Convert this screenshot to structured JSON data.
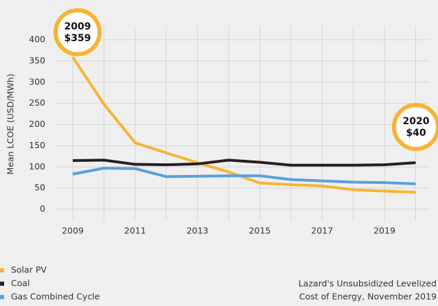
{
  "chart_data": {
    "type": "line",
    "y_label": "Mean LCOE (USD/MWh)",
    "categories": [
      "2009",
      null,
      "2011",
      null,
      "2013",
      null,
      "2015",
      null,
      "2017",
      null,
      "2019",
      null
    ],
    "series": [
      {
        "name": "Solar PV",
        "color": "#f8b334",
        "values": [
          359,
          248,
          157,
          133,
          110,
          88,
          62,
          58,
          55,
          46,
          43,
          40
        ]
      },
      {
        "name": "Coal",
        "color": "#231f20",
        "values": [
          115,
          116,
          106,
          105,
          107,
          116,
          111,
          104,
          104,
          104,
          105,
          110
        ]
      },
      {
        "name": "Gas Combined Cycle",
        "color": "#5a9fdc",
        "values": [
          83,
          97,
          96,
          77,
          78,
          79,
          79,
          70,
          67,
          64,
          63,
          60
        ]
      }
    ],
    "ylim": [
      0,
      400
    ],
    "yticks": [
      0,
      50,
      100,
      150,
      200,
      250,
      300,
      350,
      400
    ],
    "grid": true,
    "annotations": [
      {
        "lines": [
          "2009",
          "$359"
        ]
      },
      {
        "lines": [
          "2020",
          "$40"
        ]
      }
    ],
    "source": [
      "Lazard's Unsubsidized Levelized",
      "Cost of Energy, November 2019"
    ]
  }
}
